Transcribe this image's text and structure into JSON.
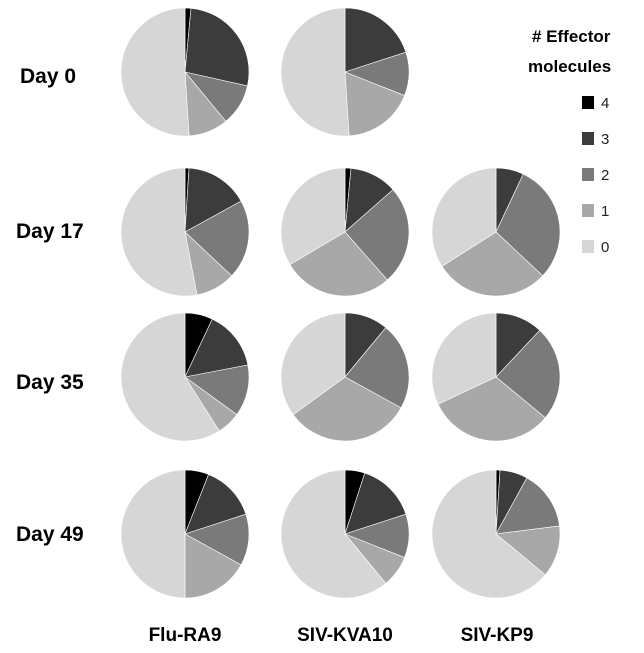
{
  "chart_data": {
    "type": "pie",
    "rows": [
      "Day 0",
      "Day 17",
      "Day 35",
      "Day 49"
    ],
    "columns": [
      "Flu-RA9",
      "SIV-KVA10",
      "SIV-KP9"
    ],
    "legend": {
      "title_lines": [
        "# Effector",
        "molecules"
      ],
      "placement": "top-right",
      "entries": [
        {
          "label": "4",
          "color": "#000000"
        },
        {
          "label": "3",
          "color": "#3c3c3c"
        },
        {
          "label": "2",
          "color": "#7a7a7a"
        },
        {
          "label": "1",
          "color": "#a8a8a8"
        },
        {
          "label": "0",
          "color": "#d6d6d6"
        }
      ]
    },
    "slice_order": [
      "4",
      "3",
      "2",
      "1",
      "0"
    ],
    "pies": [
      [
        {
          "values": [
            1.5,
            27,
            10.5,
            10,
            51
          ]
        },
        {
          "values": [
            0,
            20,
            11,
            18,
            51
          ]
        },
        null
      ],
      [
        {
          "values": [
            1,
            16,
            20,
            10,
            53
          ]
        },
        {
          "values": [
            1.5,
            12,
            25,
            28,
            33.5
          ]
        },
        {
          "values": [
            0,
            7,
            30,
            29,
            34
          ]
        }
      ],
      [
        {
          "values": [
            7,
            15,
            13,
            6,
            59
          ]
        },
        {
          "values": [
            0,
            11,
            22,
            32,
            35
          ]
        },
        {
          "values": [
            0,
            12,
            24,
            32,
            32
          ]
        }
      ],
      [
        {
          "values": [
            6,
            14,
            13,
            17,
            50
          ]
        },
        {
          "values": [
            5,
            15,
            11,
            8,
            61
          ]
        },
        {
          "values": [
            1,
            7,
            15,
            13,
            64
          ]
        }
      ]
    ]
  }
}
